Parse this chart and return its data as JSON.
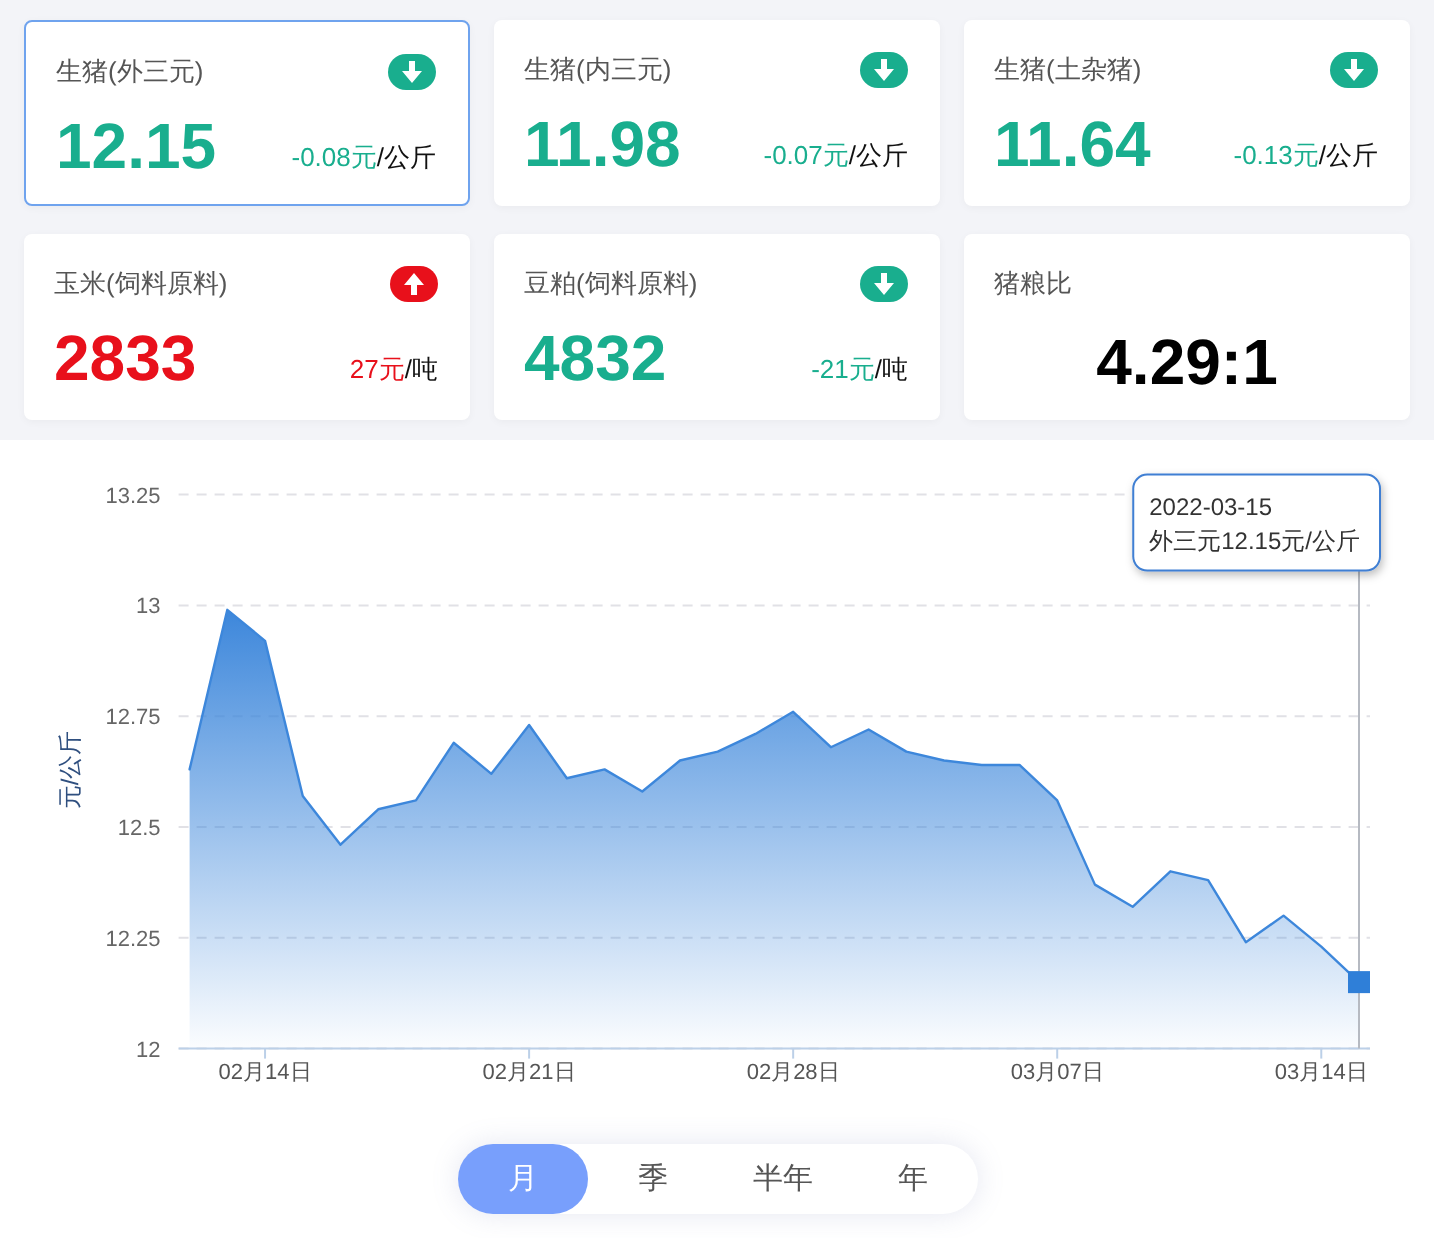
{
  "chart_data": [
    {
      "type": "other",
      "title": "生猪(外三元)",
      "color": "#19ae8e",
      "annotations": [
        "12.15",
        "-0.08元/公斤"
      ]
    },
    {
      "type": "other",
      "title": "生猪(内三元)",
      "color": "#19ae8e",
      "annotations": [
        "11.98",
        "-0.07元/公斤"
      ]
    },
    {
      "type": "other",
      "title": "生猪(土杂猪)",
      "color": "#19ae8e",
      "annotations": [
        "11.64",
        "-0.13元/公斤"
      ]
    },
    {
      "type": "other",
      "title": "玉米(饲料原料)",
      "color": "#e8101b",
      "annotations": [
        "2833",
        "27元/吨"
      ]
    },
    {
      "type": "other",
      "title": "豆粕(饲料原料)",
      "color": "#19ae8e",
      "annotations": [
        "4832",
        "-21元/吨"
      ]
    },
    {
      "type": "other",
      "title": "猪粮比",
      "color": "#000000",
      "annotations": [
        "4.29:1"
      ]
    },
    {
      "type": "area",
      "ylabel": "元/公斤",
      "xlim": [
        "2022-02-11T17:00",
        "2022-03-15T07:00"
      ],
      "xticks": [
        {
          "value": "2022-02-14",
          "label": "02月14日"
        },
        {
          "value": "2022-02-21",
          "label": "02月21日"
        },
        {
          "value": "2022-02-28",
          "label": "02月28日"
        },
        {
          "value": "2022-03-07",
          "label": "03月07日"
        },
        {
          "value": "2022-03-14",
          "label": "03月14日"
        }
      ],
      "ylim": [
        12,
        13.25
      ],
      "yticks": [
        12,
        12.25,
        12.5,
        12.75,
        13,
        13.25
      ],
      "grid": "y",
      "series": [
        {
          "type": "area",
          "color": "#3d87db",
          "x": [
            "2022-02-12",
            "2022-02-13",
            "2022-02-14",
            "2022-02-15",
            "2022-02-16",
            "2022-02-17",
            "2022-02-18",
            "2022-02-19",
            "2022-02-20",
            "2022-02-21",
            "2022-02-22",
            "2022-02-23",
            "2022-02-24",
            "2022-02-25",
            "2022-02-26",
            "2022-02-27",
            "2022-02-28",
            "2022-03-01",
            "2022-03-02",
            "2022-03-03",
            "2022-03-04",
            "2022-03-05",
            "2022-03-06",
            "2022-03-07",
            "2022-03-08",
            "2022-03-09",
            "2022-03-10",
            "2022-03-11",
            "2022-03-12",
            "2022-03-13",
            "2022-03-14",
            "2022-03-15"
          ],
          "values": [
            12.63,
            12.99,
            12.92,
            12.57,
            12.46,
            12.54,
            12.56,
            12.69,
            12.62,
            12.73,
            12.61,
            12.63,
            12.58,
            12.65,
            12.67,
            12.71,
            12.76,
            12.68,
            12.72,
            12.67,
            12.65,
            12.64,
            12.64,
            12.56,
            12.37,
            12.32,
            12.4,
            12.38,
            12.24,
            12.3,
            12.23,
            12.15
          ]
        },
        {
          "type": "scatter",
          "marker": "square",
          "color": "#2f7fd8",
          "x": [
            "2022-03-15"
          ],
          "values": [
            12.15
          ]
        }
      ],
      "ref_lines": [
        {
          "axis": "x",
          "value": "2022-03-15",
          "color": "#b6bac2"
        }
      ],
      "annotations": [
        "2022-03-15\n外三元12.15元/公斤"
      ]
    },
    {
      "type": "other",
      "annotations": [
        "月",
        "季",
        "半年",
        "年"
      ]
    }
  ]
}
